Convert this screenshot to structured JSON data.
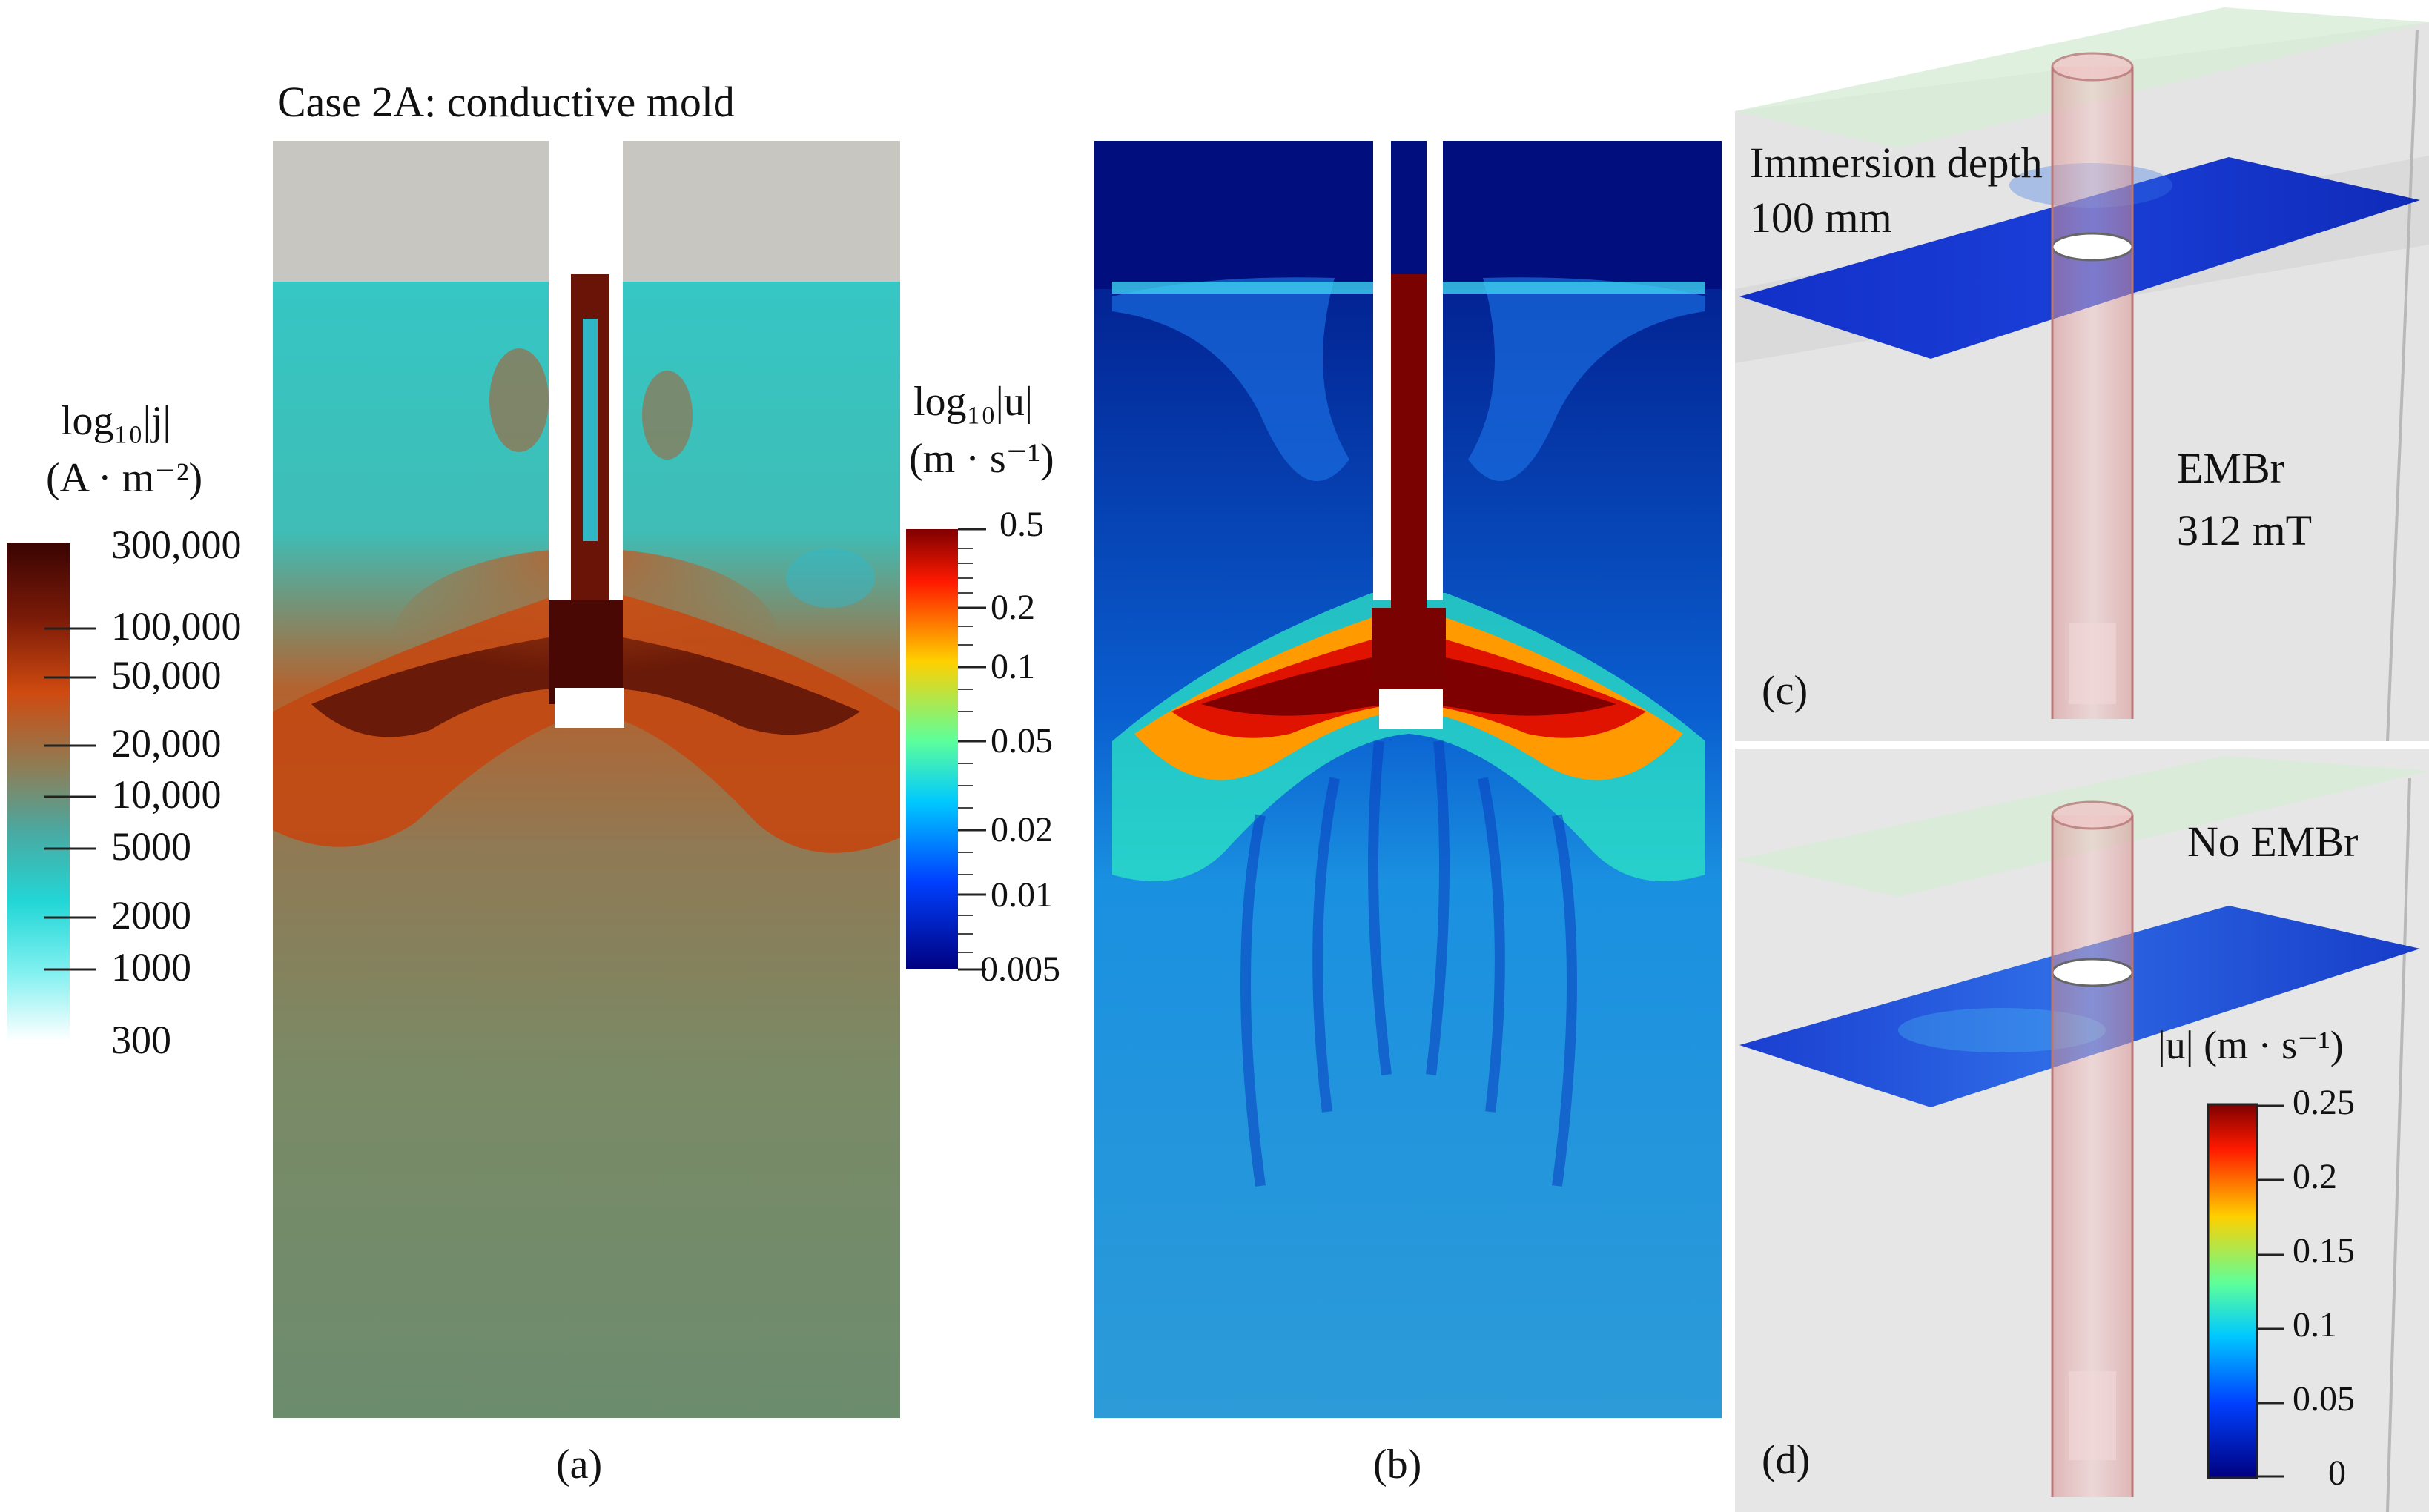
{
  "panel_a": {
    "title": "Case 2A: conductive mold",
    "label": "(a)",
    "colorbar": {
      "title_line1": "log₁₀|j|",
      "title_line2": "(A · m⁻²)",
      "ticks": [
        "300,000",
        "100,000",
        "50,000",
        "20,000",
        "10,000",
        "5000",
        "2000",
        "1000",
        "300"
      ]
    }
  },
  "panel_b": {
    "label": "(b)",
    "colorbar": {
      "title_line1": "log₁₀|u|",
      "title_line2": "(m · s⁻¹)",
      "ticks": [
        "0.5",
        "0.2",
        "0.1",
        "0.05",
        "0.02",
        "0.01",
        "0.005"
      ]
    }
  },
  "panel_c": {
    "label": "(c)",
    "depth_line1": "Immersion depth",
    "depth_line2": "100 mm",
    "field_line1": "EMBr",
    "field_line2": "312 mT"
  },
  "panel_d": {
    "label": "(d)",
    "field_text": "No EMBr",
    "colorbar": {
      "title": "|u| (m · s⁻¹)",
      "ticks": [
        "0.25",
        "0.2",
        "0.15",
        "0.1",
        "0.05",
        "0"
      ]
    }
  },
  "colors": {
    "mold_gray": "#c8c6c0",
    "teal": "#2fc8c3",
    "rust": "#c44a12",
    "dark_brown": "#4a0a04",
    "olive": "#6f8a6a",
    "jet_blue": "#00108a",
    "jet_red": "#8b0000"
  }
}
